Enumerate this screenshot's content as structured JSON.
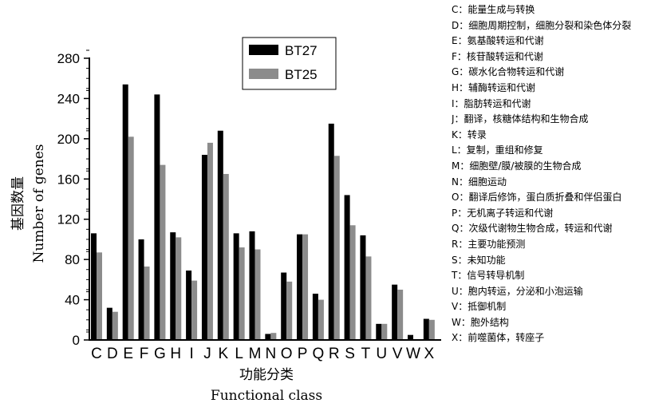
{
  "chart_data": {
    "type": "bar",
    "ylabel_cn": "基因数量",
    "ylabel": "Number of genes",
    "xlabel_cn": "功能分类",
    "xlabel": "Functional class",
    "ylim": [
      0,
      280
    ],
    "yticks": [
      "0",
      "40",
      "80",
      "120",
      "160",
      "200",
      "240",
      "280"
    ],
    "legend_position": "top-center",
    "categories": [
      "C",
      "D",
      "E",
      "F",
      "G",
      "H",
      "I",
      "J",
      "K",
      "L",
      "M",
      "N",
      "O",
      "P",
      "Q",
      "R",
      "S",
      "T",
      "U",
      "V",
      "W",
      "X"
    ],
    "series": [
      {
        "name": "BT27",
        "color": "#000000",
        "values": [
          106,
          32,
          254,
          100,
          244,
          107,
          69,
          184,
          208,
          106,
          108,
          6,
          67,
          105,
          46,
          215,
          144,
          104,
          16,
          55,
          5,
          21
        ]
      },
      {
        "name": "BT25",
        "color": "#8c8c8c",
        "values": [
          87,
          28,
          202,
          73,
          174,
          102,
          59,
          196,
          165,
          92,
          90,
          7,
          58,
          105,
          40,
          183,
          114,
          83,
          16,
          50,
          0,
          20
        ]
      }
    ]
  },
  "category_legend": [
    "C：能量生成与转换",
    "D：细胞周期控制，细胞分裂和染色体分裂",
    "E：氨基酸转运和代谢",
    "F：核苷酸转运和代谢",
    "G：碳水化合物转运和代谢",
    "H：辅酶转运和代谢",
    "I：脂肪转运和代谢",
    "J：翻译，核糖体结构和生物合成",
    "K：转录",
    "L：复制，重组和修复",
    "M：细胞壁/膜/被膜的生物合成",
    "N：细胞运动",
    "O：翻译后修饰，蛋白质折叠和伴侣蛋白",
    "P：无机离子转运和代谢",
    "Q：次级代谢物生物合成，转运和代谢",
    "R：主要功能预测",
    "S：未知功能",
    "T：信号转导机制",
    "U：胞内转运，分泌和小泡运输",
    "V：抵御机制",
    "W：胞外结构",
    "X：前噬菌体，转座子"
  ]
}
